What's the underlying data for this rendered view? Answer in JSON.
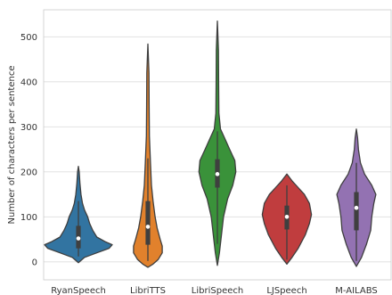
{
  "chart_data": {
    "type": "violin",
    "ylabel": "Number of characters per sentence",
    "xlabel": "",
    "ylim": [
      -40,
      560
    ],
    "yticks": [
      0,
      100,
      200,
      300,
      400,
      500
    ],
    "grid": "horizontal",
    "categories": [
      "RyanSpeech",
      "LibriTTS",
      "LibriSpeech",
      "LJSpeech",
      "M-AILABS"
    ],
    "series": [
      {
        "color": "#3274a1",
        "range": [
          -2,
          212
        ],
        "quartiles": [
          30,
          52,
          80
        ],
        "whisker": [
          12,
          135
        ],
        "density": [
          [
            -2,
            0
          ],
          [
            10,
            6
          ],
          [
            20,
            18
          ],
          [
            30,
            30
          ],
          [
            38,
            33
          ],
          [
            45,
            26
          ],
          [
            55,
            18
          ],
          [
            70,
            14
          ],
          [
            85,
            11
          ],
          [
            100,
            9
          ],
          [
            115,
            6
          ],
          [
            130,
            4
          ],
          [
            150,
            2.5
          ],
          [
            175,
            1.5
          ],
          [
            200,
            0.8
          ],
          [
            212,
            0
          ]
        ]
      },
      {
        "color": "#e1812c",
        "range": [
          -12,
          484
        ],
        "quartiles": [
          38,
          78,
          135
        ],
        "whisker": [
          2,
          230
        ],
        "density": [
          [
            -12,
            0
          ],
          [
            -5,
            5
          ],
          [
            5,
            10
          ],
          [
            20,
            14
          ],
          [
            35,
            14
          ],
          [
            50,
            12
          ],
          [
            75,
            9
          ],
          [
            100,
            7
          ],
          [
            135,
            5
          ],
          [
            170,
            3.5
          ],
          [
            220,
            2.5
          ],
          [
            280,
            1.5
          ],
          [
            350,
            1.2
          ],
          [
            420,
            1
          ],
          [
            484,
            0
          ]
        ]
      },
      {
        "color": "#3a923a",
        "range": [
          -8,
          535
        ],
        "quartiles": [
          165,
          195,
          228
        ],
        "whisker": [
          40,
          290
        ],
        "density": [
          [
            -8,
            0
          ],
          [
            20,
            2
          ],
          [
            60,
            4
          ],
          [
            100,
            6
          ],
          [
            140,
            10
          ],
          [
            170,
            15
          ],
          [
            200,
            18
          ],
          [
            225,
            17
          ],
          [
            250,
            12
          ],
          [
            275,
            7
          ],
          [
            295,
            3
          ],
          [
            330,
            1.5
          ],
          [
            400,
            1.2
          ],
          [
            470,
            1
          ],
          [
            535,
            0
          ]
        ]
      },
      {
        "color": "#c03d3e",
        "range": [
          -5,
          195
        ],
        "quartiles": [
          72,
          100,
          125
        ],
        "whisker": [
          5,
          170
        ],
        "density": [
          [
            -5,
            0
          ],
          [
            10,
            5
          ],
          [
            30,
            11
          ],
          [
            60,
            18
          ],
          [
            85,
            22
          ],
          [
            105,
            24
          ],
          [
            130,
            22
          ],
          [
            150,
            17
          ],
          [
            165,
            11
          ],
          [
            180,
            5
          ],
          [
            195,
            0
          ]
        ]
      },
      {
        "color": "#9372b2",
        "range": [
          -10,
          295
        ],
        "quartiles": [
          70,
          120,
          155
        ],
        "whisker": [
          2,
          220
        ],
        "density": [
          [
            -10,
            0
          ],
          [
            10,
            5
          ],
          [
            40,
            10
          ],
          [
            70,
            14
          ],
          [
            100,
            15
          ],
          [
            130,
            17
          ],
          [
            150,
            19
          ],
          [
            170,
            15
          ],
          [
            195,
            8
          ],
          [
            220,
            4
          ],
          [
            250,
            2
          ],
          [
            275,
            1.2
          ],
          [
            295,
            0
          ]
        ]
      }
    ]
  }
}
